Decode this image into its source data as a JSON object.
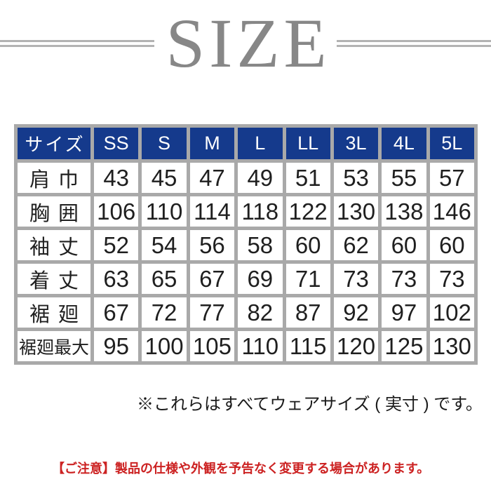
{
  "title": {
    "text": "SIZE"
  },
  "notes": {
    "size_note": "※これらはすべてウェアサイズ ( 実寸 ) です。",
    "caution": "【ご注意】製品の仕様や外観を予告なく変更する場合があります。"
  },
  "colors": {
    "header_bg": "#153a8c",
    "header_text": "#ffffff",
    "grid_gray": "#a9a9a9",
    "title_gray": "#878787",
    "rule_gray": "#b3b3b3",
    "body_text": "#1f1f1f",
    "caution_red": "#cc2222"
  },
  "chart_data": {
    "type": "table",
    "title": "SIZE",
    "columns": [
      "サイズ",
      "SS",
      "S",
      "M",
      "L",
      "LL",
      "3L",
      "4L",
      "5L"
    ],
    "rows": [
      {
        "label": "肩巾",
        "values": [
          "43",
          "45",
          "47",
          "49",
          "51",
          "53",
          "55",
          "57"
        ]
      },
      {
        "label": "胸囲",
        "values": [
          "106",
          "110",
          "114",
          "118",
          "122",
          "130",
          "138",
          "146"
        ]
      },
      {
        "label": "袖丈",
        "values": [
          "52",
          "54",
          "56",
          "58",
          "60",
          "62",
          "60",
          "60"
        ]
      },
      {
        "label": "着丈",
        "values": [
          "63",
          "65",
          "67",
          "69",
          "71",
          "73",
          "73",
          "73"
        ]
      },
      {
        "label": "裾廻",
        "values": [
          "67",
          "72",
          "77",
          "82",
          "87",
          "92",
          "97",
          "102"
        ]
      },
      {
        "label": "裾廻最大",
        "values": [
          "95",
          "100",
          "105",
          "110",
          "115",
          "120",
          "125",
          "130"
        ]
      }
    ]
  }
}
